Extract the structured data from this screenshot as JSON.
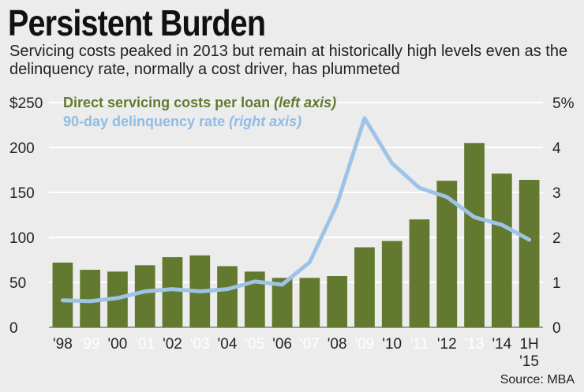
{
  "header": {
    "title": "Persistent Burden",
    "subtitle": "Servicing costs peaked in 2013 but remain at historically high levels even as the delinquency rate, normally a cost driver, has plummeted"
  },
  "source": "Source: MBA",
  "colors": {
    "bar": "#62792f",
    "line": "#9dc3e6",
    "grid": "#ffffff",
    "legend_green": "#62792f",
    "legend_blue": "#8fbde4"
  },
  "legend": {
    "costs": {
      "label": "Direct servicing costs per loan ",
      "note": "(left axis)"
    },
    "delinquency": {
      "label": "90-day delinquency rate ",
      "note": "(right axis)"
    }
  },
  "chart_data": {
    "type": "bar",
    "title": "Persistent Burden",
    "categories": [
      "'98",
      "'99",
      "'00",
      "'01",
      "'02",
      "'03",
      "'04",
      "'05",
      "'06",
      "'07",
      "'08",
      "'09",
      "'10",
      "'11",
      "'12",
      "'13",
      "'14",
      "1H '15"
    ],
    "category_label_lines": [
      [
        "'98"
      ],
      [
        "'99"
      ],
      [
        "'00"
      ],
      [
        "'01"
      ],
      [
        "'02"
      ],
      [
        "'03"
      ],
      [
        "'04"
      ],
      [
        "'05"
      ],
      [
        "'06"
      ],
      [
        "'07"
      ],
      [
        "'08"
      ],
      [
        "'09"
      ],
      [
        "'10"
      ],
      [
        "'11"
      ],
      [
        "'12"
      ],
      [
        "'13"
      ],
      [
        "'14"
      ],
      [
        "1H",
        "'15"
      ]
    ],
    "category_label_style": [
      "dark",
      "light",
      "dark",
      "light",
      "dark",
      "light",
      "dark",
      "light",
      "dark",
      "light",
      "dark",
      "light",
      "dark",
      "light",
      "dark",
      "light",
      "dark",
      "dark"
    ],
    "series": [
      {
        "name": "Direct servicing costs per loan (left axis)",
        "type": "bar",
        "axis": "left",
        "values": [
          72,
          64,
          62,
          69,
          78,
          80,
          68,
          62,
          55,
          55,
          57,
          89,
          96,
          120,
          163,
          205,
          171,
          164
        ]
      },
      {
        "name": "90-day delinquency rate (right axis)",
        "type": "line",
        "axis": "right",
        "values": [
          0.6,
          0.58,
          0.65,
          0.8,
          0.85,
          0.8,
          0.85,
          1.02,
          0.95,
          1.45,
          2.75,
          4.65,
          3.65,
          3.1,
          2.9,
          2.45,
          2.28,
          1.95
        ]
      }
    ],
    "left_axis": {
      "ylim": [
        0,
        250
      ],
      "ticks": [
        0,
        50,
        100,
        150,
        200,
        250
      ],
      "tick_labels": [
        "0",
        "50",
        "100",
        "150",
        "200",
        "$250"
      ]
    },
    "right_axis": {
      "ylim": [
        0,
        5
      ],
      "ticks": [
        0,
        1,
        2,
        3,
        4,
        5
      ],
      "tick_labels": [
        "0",
        "1",
        "2",
        "3",
        "4",
        "5%"
      ]
    },
    "grid": true
  }
}
